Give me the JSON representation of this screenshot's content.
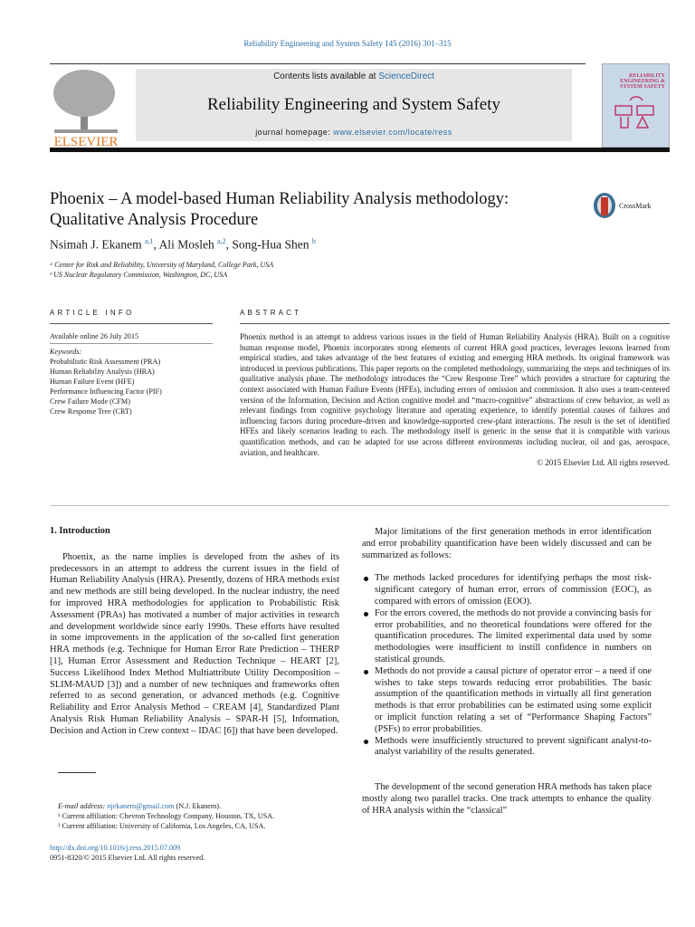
{
  "journal_ref": "Reliability Engineering and System Safety 145 (2016) 301–315",
  "masthead": {
    "contents_prefix": "Contents lists available at ",
    "contents_link": "ScienceDirect",
    "journal_title": "Reliability Engineering and System Safety",
    "homepage_prefix": "journal homepage: ",
    "homepage_link": "www.elsevier.com/locate/ress",
    "publisher_logo": "ELSEVIER",
    "cover_title": "RELIABILITY ENGINEERING & SYSTEM SAFETY"
  },
  "crossmark": "CrossMark",
  "article": {
    "title": "Phoenix – A model-based Human Reliability Analysis methodology: Qualitative Analysis Procedure",
    "authors": [
      {
        "name": "Nsimah J. Ekanem",
        "sup": "a,1"
      },
      {
        "name": "Ali Mosleh",
        "sup": "a,2"
      },
      {
        "name": "Song-Hua Shen",
        "sup": "b"
      }
    ],
    "affiliations": [
      "ᵃ Center for Risk and Reliability, University of Maryland, College Park, USA",
      "ᵇ US Nuclear Regulatory Commission, Washington, DC, USA"
    ]
  },
  "article_info": {
    "heading": "ARTICLE INFO",
    "available": "Available online 26 July 2015",
    "keywords_label": "Keywords:",
    "keywords": [
      "Probabilistic Risk Assessment (PRA)",
      "Human Reliability Analysis (HRA)",
      "Human Failure Event (HFE)",
      "Performance Influencing Factor (PIF)",
      "Crew Failure Mode (CFM)",
      "Crew Response Tree (CRT)"
    ]
  },
  "abstract": {
    "heading": "ABSTRACT",
    "text": "Phoenix method is an attempt to address various issues in the field of Human Reliability Analysis (HRA). Built on a cognitive human response model, Phoenix incorporates strong elements of current HRA good practices, leverages lessons learned from empirical studies, and takes advantage of the best features of existing and emerging HRA methods. Its original framework was introduced in previous publications. This paper reports on the completed methodology, summarizing the steps and techniques of its qualitative analysis phase. The methodology introduces the “Crew Response Tree” which provides a structure for capturing the context associated with Human Failure Events (HFEs), including errors of omission and commission. It also uses a team-centered version of the Information, Decision and Action cognitive model and “macro-cognitive” abstractions of crew behavior, as well as relevant findings from cognitive psychology literature and operating experience, to identify potential causes of failures and influencing factors during procedure-driven and knowledge-supported crew-plant interactions. The result is the set of identified HFEs and likely scenarios leading to each. The methodology itself is generic in the sense that it is compatible with various quantification methods, and can be adapted for use across different environments including nuclear, oil and gas, aerospace, aviation, and healthcare.",
    "copyright": "© 2015 Elsevier Ltd. All rights reserved."
  },
  "intro": {
    "heading": "1.  Introduction",
    "p1": "Phoenix, as the name implies is developed from the ashes of its predecessors in an attempt to address the current issues in the field of Human Reliability Analysis (HRA). Presently, dozens of HRA methods exist and new methods are still being developed. In the nuclear industry, the need for improved HRA methodologies for application to Probabilistic Risk Assessment (PRAs) has motivated a number of major activities in research and development worldwide since early 1990s. These efforts have resulted in some improvements in the application of the so-called first generation HRA methods (e.g. Technique for Human Error Rate Prediction – THERP [1], Human Error Assessment and Reduction Technique – HEART [2], Success Likelihood Index Method Multiattribute Utility Decomposition – SLIM-MAUD [3]) and a number of new techniques and frameworks often referred to as second generation, or advanced methods (e.g. Cognitive Reliability and Error Analysis Method – CREAM [4], Standardized Plant Analysis Risk Human Reliability Analysis – SPAR-H [5], Information, Decision and Action in Crew context – IDAC [6]) that have been developed.",
    "r1": "Major limitations of the first generation methods in error identification and error probability quantification have been widely discussed and can be summarized as follows:",
    "bullets": [
      "The methods lacked procedures for identifying perhaps the most risk-significant category of human error, errors of commission (EOC), as compared with errors of omission (EOO).",
      "For the errors covered, the methods do not provide a convincing basis for error probabilities, and no theoretical foundations were offered for the quantification procedures. The limited experimental data used by some methodologies were insufficient to instill confidence in numbers on statistical grounds.",
      "Methods do not provide a causal picture of operator error – a need if one wishes to take steps towards reducing error probabilities. The basic assumption of the quantification methods in virtually all first generation methods is that error probabilities can be estimated using some explicit or implicit function relating a set of “Performance Shaping Factors” (PSFs) to error probabilities.",
      "Methods were insufficiently structured to prevent significant analyst-to-analyst variability of the results generated."
    ],
    "r2": "The development of the second generation HRA methods has taken place mostly along two parallel tracks. One track attempts to enhance the quality of HRA analysis within the “classical”"
  },
  "footnotes": {
    "email_label": "E-mail address: ",
    "email": "njekanem@gmail.com",
    "email_suffix": " (N.J. Ekanem).",
    "notes": [
      "¹ Current affiliation: Chevron Technology Company, Houston, TX, USA.",
      "² Current affiliation: University of California, Los Angeles, CA, USA."
    ],
    "doi": "http://dx.doi.org/10.1016/j.ress.2015.07.009",
    "issn": "0951-8320/© 2015 Elsevier Ltd. All rights reserved."
  }
}
